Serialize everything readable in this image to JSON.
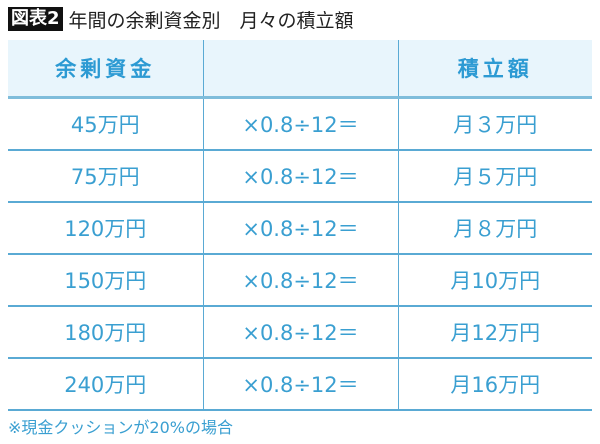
{
  "title": {
    "badge": "図表2",
    "text": "年間の余剰資金別　月々の積立額"
  },
  "table": {
    "headers": [
      "余剰資金",
      "",
      "積立額"
    ],
    "rows": [
      [
        "45万円",
        "×0.8÷12＝",
        "月３万円"
      ],
      [
        "75万円",
        "×0.8÷12＝",
        "月５万円"
      ],
      [
        "120万円",
        "×0.8÷12＝",
        "月８万円"
      ],
      [
        "150万円",
        "×0.8÷12＝",
        "月10万円"
      ],
      [
        "180万円",
        "×0.8÷12＝",
        "月12万円"
      ],
      [
        "240万円",
        "×0.8÷12＝",
        "月16万円"
      ]
    ]
  },
  "note": "※現金クッションが20%の場合",
  "colors": {
    "accent": "#3a9fd1",
    "header_bg": "#e8f5fc"
  }
}
